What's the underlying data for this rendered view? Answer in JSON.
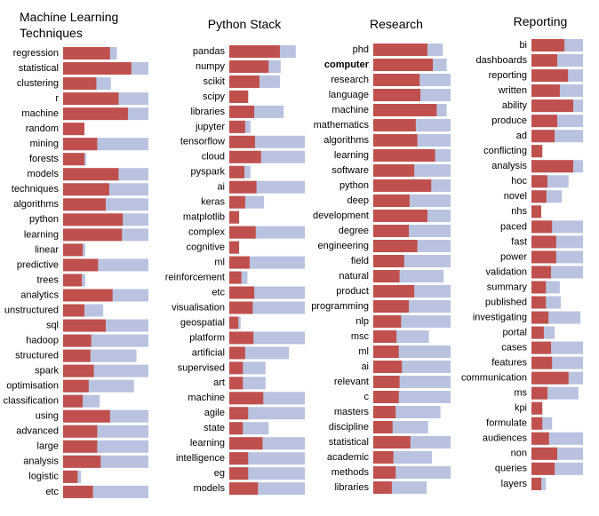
{
  "chart_data": [
    {
      "type": "bar",
      "title": "Machine Learning Techniques",
      "categories": [
        "regression",
        "statistical",
        "clustering",
        "r",
        "machine",
        "random",
        "mining",
        "forests",
        "models",
        "techniques",
        "algorithms",
        "python",
        "learning",
        "linear",
        "predictive",
        "trees",
        "analytics",
        "unstructured",
        "sql",
        "hadoop",
        "structured",
        "spark",
        "optimisation",
        "classification",
        "using",
        "advanced",
        "large",
        "analysis",
        "logistic",
        "etc"
      ],
      "series": [
        {
          "color": "#b9c3e0",
          "values": [
            63,
            100,
            56,
            100,
            100,
            25,
            100,
            27,
            100,
            100,
            100,
            100,
            100,
            26,
            100,
            26,
            100,
            47,
            100,
            100,
            86,
            100,
            83,
            43,
            100,
            100,
            100,
            100,
            21,
            100
          ]
        },
        {
          "color": "#c0504d",
          "values": [
            55,
            80,
            39,
            65,
            76,
            25,
            40,
            25,
            65,
            54,
            50,
            70,
            69,
            23,
            41,
            22,
            58,
            25,
            50,
            33,
            32,
            36,
            30,
            23,
            55,
            40,
            40,
            44,
            17,
            35
          ]
        }
      ],
      "xlim": [
        0,
        100
      ]
    },
    {
      "type": "bar",
      "title": "Python Stack",
      "categories": [
        "pandas",
        "numpy",
        "scikit",
        "scipy",
        "libraries",
        "jupyter",
        "tensorflow",
        "cloud",
        "pyspark",
        "ai",
        "keras",
        "matplotlib",
        "complex",
        "cognitive",
        "ml",
        "reinforcement",
        "etc",
        "visualisation",
        "geospatial",
        "platform",
        "artificial",
        "supervised",
        "art",
        "machine",
        "agile",
        "state",
        "learning",
        "intelligence",
        "eg",
        "models"
      ],
      "series": [
        {
          "color": "#b9c3e0",
          "values": [
            88,
            68,
            67,
            25,
            72,
            28,
            100,
            100,
            28,
            100,
            46,
            13,
            100,
            13,
            100,
            24,
            100,
            100,
            15,
            100,
            79,
            48,
            48,
            100,
            100,
            52,
            100,
            100,
            100,
            100
          ]
        },
        {
          "color": "#c0504d",
          "values": [
            67,
            52,
            40,
            25,
            33,
            21,
            34,
            42,
            20,
            36,
            21,
            13,
            35,
            13,
            27,
            16,
            33,
            31,
            12,
            32,
            21,
            18,
            18,
            45,
            25,
            18,
            44,
            25,
            25,
            38
          ]
        }
      ],
      "xlim": [
        0,
        100
      ]
    },
    {
      "type": "bar",
      "title": "Research",
      "categories": [
        "phd",
        "computer",
        "research",
        "language",
        "machine",
        "mathematics",
        "algorithms",
        "learning",
        "software",
        "python",
        "deep",
        "development",
        "degree",
        "engineering",
        "field",
        "natural",
        "product",
        "programming",
        "nlp",
        "msc",
        "ml",
        "ai",
        "relevant",
        "c",
        "masters",
        "discipline",
        "statistical",
        "academic",
        "methods",
        "libraries"
      ],
      "bold": [
        1
      ],
      "series": [
        {
          "color": "#b9c3e0",
          "values": [
            90,
            95,
            100,
            100,
            95,
            100,
            100,
            100,
            100,
            100,
            100,
            100,
            100,
            100,
            100,
            91,
            100,
            100,
            100,
            72,
            100,
            100,
            100,
            100,
            87,
            71,
            100,
            76,
            100,
            69
          ]
        },
        {
          "color": "#c0504d",
          "values": [
            70,
            77,
            60,
            61,
            82,
            55,
            57,
            80,
            53,
            75,
            47,
            70,
            46,
            57,
            40,
            34,
            53,
            46,
            36,
            30,
            33,
            37,
            34,
            33,
            29,
            25,
            48,
            26,
            29,
            24
          ]
        }
      ],
      "xlim": [
        0,
        100
      ]
    },
    {
      "type": "bar",
      "title": "Reporting",
      "categories": [
        "bi",
        "dashboards",
        "reporting",
        "written",
        "ability",
        "produce",
        "ad",
        "conflicting",
        "analysis",
        "hoc",
        "novel",
        "nhs",
        "paced",
        "fast",
        "power",
        "validation",
        "summary",
        "published",
        "investigating",
        "portal",
        "cases",
        "features",
        "communication",
        "ms",
        "kpi",
        "formulate",
        "audiences",
        "non",
        "queries",
        "layers"
      ],
      "series": [
        {
          "color": "#b9c3e0",
          "values": [
            100,
            100,
            100,
            100,
            100,
            100,
            100,
            21,
            100,
            72,
            59,
            19,
            100,
            100,
            100,
            100,
            55,
            57,
            95,
            45,
            100,
            100,
            100,
            91,
            21,
            40,
            100,
            100,
            100,
            28
          ]
        },
        {
          "color": "#c0504d",
          "values": [
            64,
            50,
            71,
            55,
            81,
            50,
            45,
            21,
            81,
            31,
            29,
            19,
            40,
            48,
            48,
            38,
            28,
            28,
            33,
            24,
            38,
            40,
            72,
            31,
            21,
            21,
            34,
            50,
            45,
            19
          ]
        }
      ],
      "xlim": [
        0,
        100
      ]
    }
  ]
}
